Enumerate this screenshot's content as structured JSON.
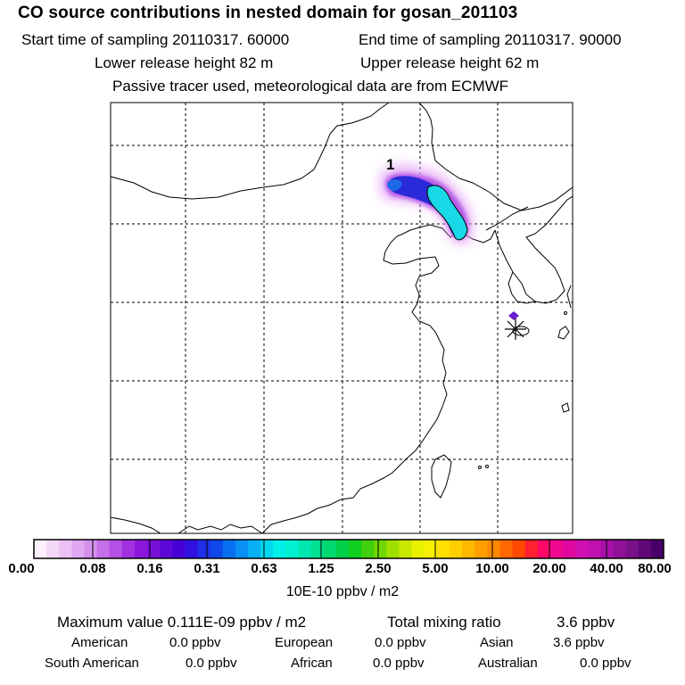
{
  "title": "CO  source contributions in nested domain for gosan_201103",
  "header": {
    "start_time": "Start time of sampling 20110317. 60000",
    "end_time": "End time of sampling 20110317. 90000",
    "lower_height": "Lower release height   82 m",
    "upper_height": "Upper release height   62 m",
    "tracer_note": "Passive tracer used, meteorological data are from ECMWF"
  },
  "map": {
    "plume_label": "1",
    "receptor_name": "gosan",
    "colors": {
      "plume_outer": "#d97ff2",
      "plume_mid": "#7a1fd6",
      "plume_core": "#2a2ad8",
      "plume_cyan": "#19d8e8",
      "receptor_dot": "#6a1cd0"
    }
  },
  "colorbar": {
    "ticks": [
      "0.00",
      "0.08",
      "0.16",
      "0.31",
      "0.63",
      "1.25",
      "2.50",
      "5.00",
      "10.00",
      "20.00",
      "40.00",
      "80.00"
    ],
    "colors": [
      "#fcf0fc",
      "#f4d8f8",
      "#ecc0f4",
      "#e0a8f0",
      "#d490ec",
      "#c470e8",
      "#b450e4",
      "#a030e0",
      "#8c18dc",
      "#7810d8",
      "#5e08d8",
      "#4800d8",
      "#3010e0",
      "#2030e8",
      "#1048ec",
      "#0870f0",
      "#0890f4",
      "#08b0f4",
      "#00d8f0",
      "#00f0e8",
      "#00f0d0",
      "#00e8b0",
      "#00e090",
      "#00d870",
      "#00d048",
      "#10d020",
      "#40d010",
      "#70d800",
      "#a0e000",
      "#c8e800",
      "#e8f000",
      "#f8f000",
      "#ffe000",
      "#ffd000",
      "#ffb800",
      "#ffa000",
      "#ff8800",
      "#ff6800",
      "#ff4800",
      "#ff2030",
      "#ff0868",
      "#f00890",
      "#e008a0",
      "#d010b0",
      "#c010b0",
      "#a810a8",
      "#901098",
      "#781088",
      "#600878",
      "#480068"
    ],
    "unit": "10E-10 ppbv / m2"
  },
  "stats": {
    "max_value": "Maximum value  0.111E-09 ppbv / m2",
    "total_mixing": "Total mixing ratio",
    "total_value": "3.6 ppbv"
  },
  "regions": {
    "american_label": "American",
    "american_value": "0.0 ppbv",
    "european_label": "European",
    "european_value": "0.0 ppbv",
    "asian_label": "Asian",
    "asian_value": "3.6 ppbv",
    "south_american_label": "South American",
    "south_american_value": "0.0 ppbv",
    "african_label": "African",
    "african_value": "0.0 ppbv",
    "australian_label": "Australian",
    "australian_value": "0.0 ppbv"
  }
}
